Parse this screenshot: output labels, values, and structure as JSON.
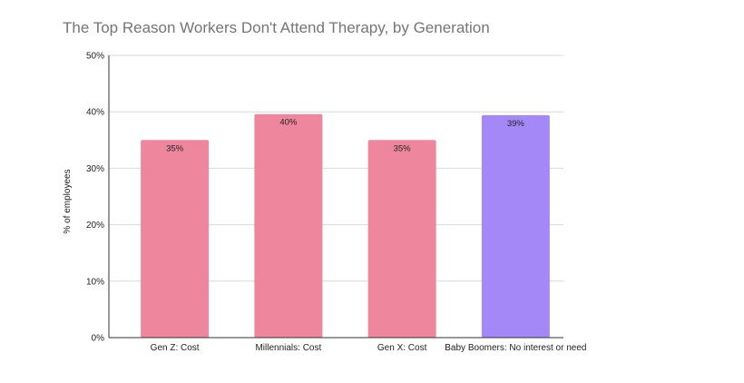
{
  "chart_data": {
    "type": "bar",
    "title": "The Top Reason Workers Don't Attend Therapy, by Generation",
    "xlabel": "",
    "ylabel": "% of employees",
    "categories": [
      "Gen Z: Cost",
      "Millennials: Cost",
      "Gen X: Cost",
      "Baby Boomers: No interest or need"
    ],
    "values": [
      35,
      39.6,
      35,
      39.4
    ],
    "data_labels": [
      "35%",
      "40%",
      "35%",
      "39%"
    ],
    "bar_colors": [
      "#ee879e",
      "#ee879e",
      "#ee879e",
      "#a488f7"
    ],
    "ylim": [
      0,
      50
    ],
    "yticks": [
      0,
      10,
      20,
      30,
      40,
      50
    ],
    "ytick_labels": [
      "0%",
      "10%",
      "20%",
      "30%",
      "40%",
      "50%"
    ],
    "grid": true,
    "legend": "none"
  }
}
